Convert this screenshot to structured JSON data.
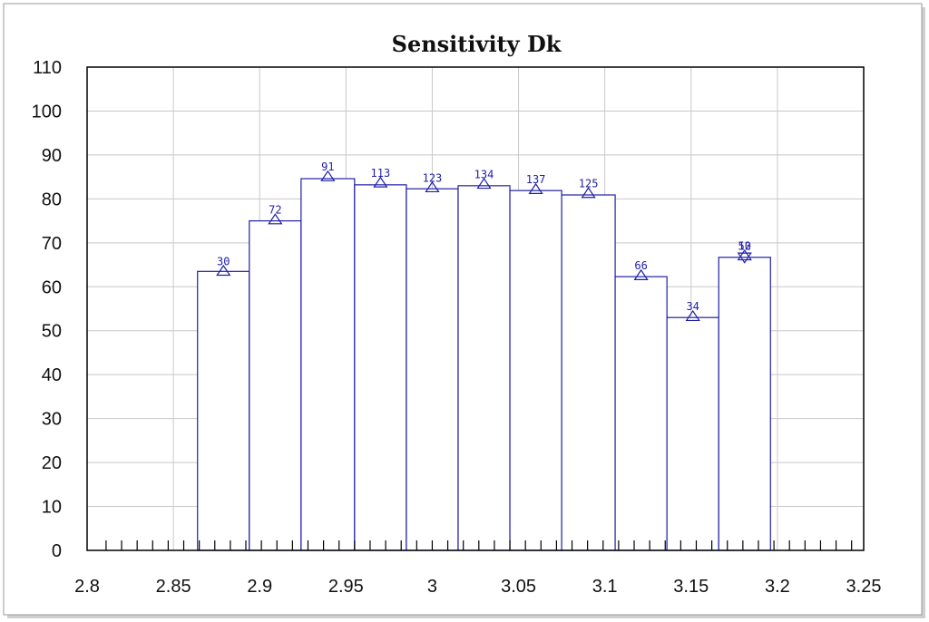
{
  "chart_data": {
    "type": "bar",
    "title": "Sensitivity Dk",
    "xlabel": "",
    "ylabel": "",
    "xlim": [
      2.8,
      3.25
    ],
    "ylim": [
      0,
      110
    ],
    "x_ticks": [
      "2.8",
      "2.85",
      "2.9",
      "2.95",
      "3",
      "3.05",
      "3.1",
      "3.15",
      "3.2",
      "3.25"
    ],
    "y_ticks": [
      "0",
      "10",
      "20",
      "30",
      "40",
      "50",
      "60",
      "70",
      "80",
      "90",
      "100",
      "110"
    ],
    "grid": true,
    "legend": "none",
    "bar_color": "#1f1fa8",
    "bins": [
      {
        "x0": 2.864,
        "x1": 2.894,
        "value": 63.5,
        "count": "30",
        "marker_y": 63.5
      },
      {
        "x0": 2.894,
        "x1": 2.924,
        "value": 75.0,
        "count": "72",
        "marker_y": 75.2
      },
      {
        "x0": 2.924,
        "x1": 2.955,
        "value": 84.6,
        "count": "91",
        "marker_y": 85.0
      },
      {
        "x0": 2.955,
        "x1": 2.985,
        "value": 83.2,
        "count": "113",
        "marker_y": 83.6
      },
      {
        "x0": 2.985,
        "x1": 3.015,
        "value": 82.3,
        "count": "123",
        "marker_y": 82.5
      },
      {
        "x0": 3.015,
        "x1": 3.045,
        "value": 83.0,
        "count": "134",
        "marker_y": 83.3
      },
      {
        "x0": 3.045,
        "x1": 3.075,
        "value": 81.9,
        "count": "137",
        "marker_y": 82.1
      },
      {
        "x0": 3.075,
        "x1": 3.106,
        "value": 80.9,
        "count": "125",
        "marker_y": 81.2
      },
      {
        "x0": 3.106,
        "x1": 3.136,
        "value": 62.3,
        "count": "66",
        "marker_y": 62.5
      },
      {
        "x0": 3.136,
        "x1": 3.166,
        "value": 53.0,
        "count": "34",
        "marker_y": 53.2
      },
      {
        "x0": 3.166,
        "x1": 3.196,
        "value": 66.7,
        "count": "12",
        "marker_y": 67.0,
        "overlay_count": "50",
        "overlay_marker": "down"
      }
    ],
    "minor_tick_spacing": 0.009
  }
}
